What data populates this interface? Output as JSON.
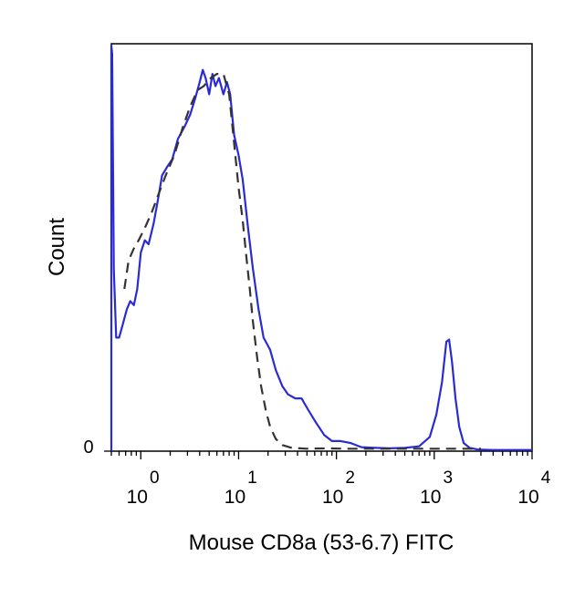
{
  "chart_data": {
    "type": "line",
    "title": "",
    "xlabel": "Mouse CD8a (53-6.7) FITC",
    "ylabel": "Count",
    "x_scale": "log",
    "xlim": [
      0.5,
      10000
    ],
    "ylim": [
      0,
      1.0
    ],
    "y_tick_labels": [
      {
        "value": 0,
        "label": "0"
      }
    ],
    "x_tick_labels": [
      {
        "value": 1,
        "base": "10",
        "exp": "0"
      },
      {
        "value": 10,
        "base": "10",
        "exp": "1"
      },
      {
        "value": 100,
        "base": "10",
        "exp": "2"
      },
      {
        "value": 1000,
        "base": "10",
        "exp": "3"
      },
      {
        "value": 10000,
        "base": "10",
        "exp": "4"
      }
    ],
    "grid": false,
    "legend": "none",
    "series": [
      {
        "style": "solid",
        "color": "#2b2bd6",
        "points": [
          [
            0.5,
            0.0
          ],
          [
            0.5,
            1.0
          ],
          [
            0.51,
            0.98
          ],
          [
            0.53,
            0.45
          ],
          [
            0.56,
            0.28
          ],
          [
            0.6,
            0.28
          ],
          [
            0.65,
            0.31
          ],
          [
            0.72,
            0.35
          ],
          [
            0.78,
            0.37
          ],
          [
            0.85,
            0.36
          ],
          [
            0.92,
            0.4
          ],
          [
            1.0,
            0.49
          ],
          [
            1.1,
            0.52
          ],
          [
            1.2,
            0.51
          ],
          [
            1.35,
            0.56
          ],
          [
            1.5,
            0.62
          ],
          [
            1.65,
            0.68
          ],
          [
            1.85,
            0.7
          ],
          [
            2.1,
            0.72
          ],
          [
            2.4,
            0.77
          ],
          [
            2.8,
            0.8
          ],
          [
            3.2,
            0.83
          ],
          [
            3.6,
            0.87
          ],
          [
            4.0,
            0.91
          ],
          [
            4.3,
            0.94
          ],
          [
            4.6,
            0.92
          ],
          [
            5.0,
            0.88
          ],
          [
            5.4,
            0.93
          ],
          [
            5.8,
            0.9
          ],
          [
            6.3,
            0.92
          ],
          [
            7.0,
            0.88
          ],
          [
            7.6,
            0.91
          ],
          [
            8.2,
            0.88
          ],
          [
            9.0,
            0.78
          ],
          [
            10.0,
            0.73
          ],
          [
            11.0,
            0.67
          ],
          [
            12.5,
            0.55
          ],
          [
            14.0,
            0.45
          ],
          [
            16.0,
            0.35
          ],
          [
            18.0,
            0.28
          ],
          [
            21.0,
            0.25
          ],
          [
            24.0,
            0.2
          ],
          [
            28.0,
            0.16
          ],
          [
            32.0,
            0.14
          ],
          [
            38.0,
            0.13
          ],
          [
            44.0,
            0.13
          ],
          [
            52.0,
            0.1
          ],
          [
            62.0,
            0.07
          ],
          [
            75.0,
            0.04
          ],
          [
            90.0,
            0.025
          ],
          [
            110.0,
            0.025
          ],
          [
            140.0,
            0.02
          ],
          [
            180.0,
            0.01
          ],
          [
            250.0,
            0.008
          ],
          [
            350.0,
            0.007
          ],
          [
            500.0,
            0.008
          ],
          [
            700.0,
            0.012
          ],
          [
            900.0,
            0.035
          ],
          [
            1050.0,
            0.09
          ],
          [
            1200.0,
            0.17
          ],
          [
            1330.0,
            0.27
          ],
          [
            1420.0,
            0.275
          ],
          [
            1520.0,
            0.22
          ],
          [
            1650.0,
            0.13
          ],
          [
            1800.0,
            0.06
          ],
          [
            2000.0,
            0.02
          ],
          [
            2300.0,
            0.008
          ],
          [
            2800.0,
            0.004
          ],
          [
            4000.0,
            0.003
          ],
          [
            6000.0,
            0.003
          ],
          [
            10000.0,
            0.003
          ]
        ]
      },
      {
        "style": "dashed",
        "color": "#333333",
        "points": [
          [
            0.68,
            0.4
          ],
          [
            0.75,
            0.47
          ],
          [
            0.85,
            0.5
          ],
          [
            0.95,
            0.52
          ],
          [
            1.1,
            0.55
          ],
          [
            1.3,
            0.59
          ],
          [
            1.5,
            0.63
          ],
          [
            1.8,
            0.68
          ],
          [
            2.2,
            0.73
          ],
          [
            2.7,
            0.8
          ],
          [
            3.2,
            0.85
          ],
          [
            3.8,
            0.89
          ],
          [
            4.4,
            0.9
          ],
          [
            5.2,
            0.92
          ],
          [
            6.0,
            0.93
          ],
          [
            7.0,
            0.93
          ],
          [
            8.0,
            0.88
          ],
          [
            9.0,
            0.76
          ],
          [
            10.0,
            0.65
          ],
          [
            11.0,
            0.57
          ],
          [
            12.0,
            0.48
          ],
          [
            13.0,
            0.4
          ],
          [
            14.0,
            0.32
          ],
          [
            15.5,
            0.23
          ],
          [
            17.0,
            0.16
          ],
          [
            19.0,
            0.1
          ],
          [
            21.0,
            0.06
          ],
          [
            24.0,
            0.03
          ],
          [
            28.0,
            0.015
          ],
          [
            35.0,
            0.008
          ],
          [
            50.0,
            0.006
          ],
          [
            80.0,
            0.007
          ],
          [
            130.0,
            0.006
          ],
          [
            250.0,
            0.006
          ],
          [
            500.0,
            0.006
          ],
          [
            900.0,
            0.006
          ],
          [
            1500.0,
            0.006
          ],
          [
            2500.0,
            0.006
          ],
          [
            3000.0,
            0.006
          ]
        ]
      }
    ]
  }
}
